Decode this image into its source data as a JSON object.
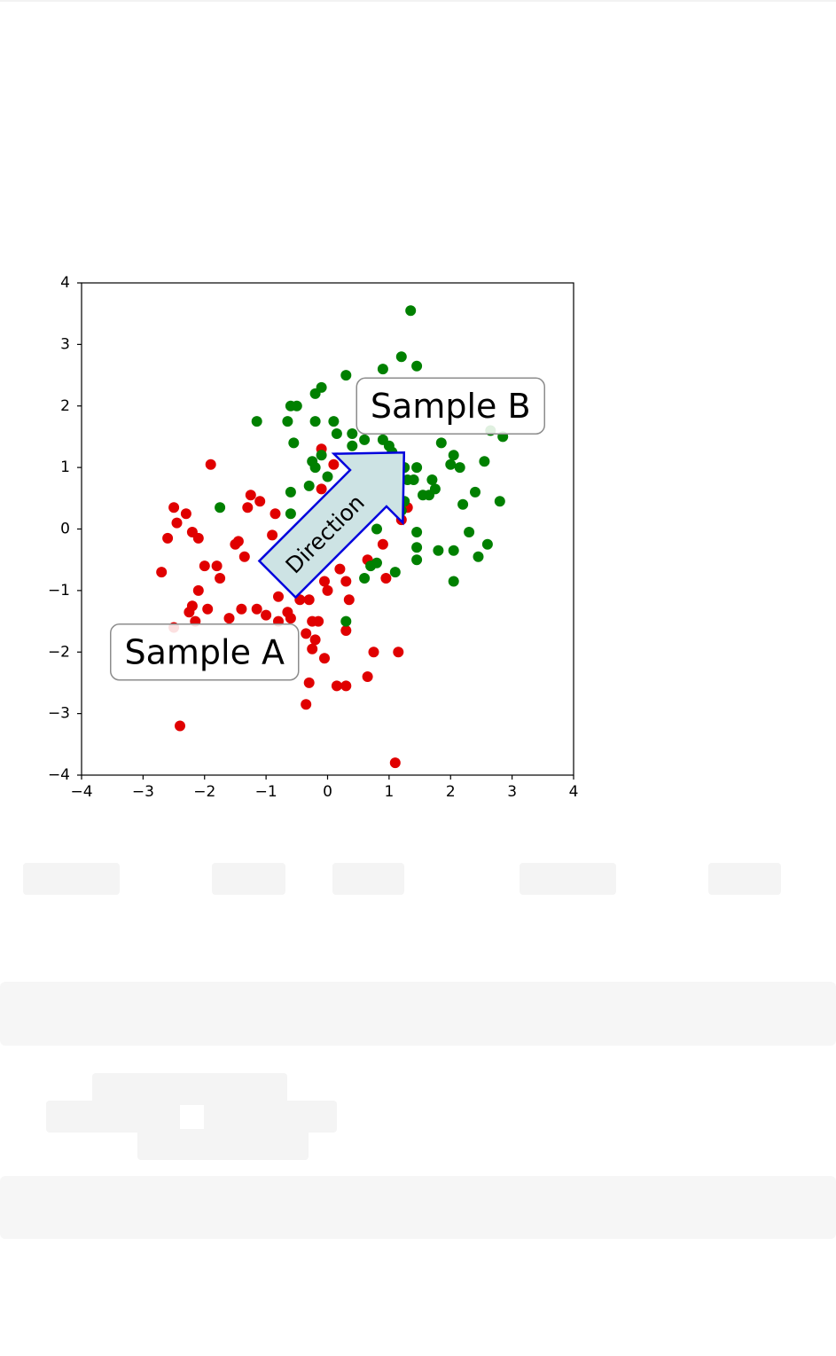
{
  "chart_data": {
    "type": "scatter",
    "xlim": [
      -4,
      4
    ],
    "ylim": [
      -4,
      4
    ],
    "xticks": [
      -4,
      -3,
      -2,
      -1,
      0,
      1,
      2,
      3,
      4
    ],
    "yticks": [
      -4,
      -3,
      -2,
      -1,
      0,
      1,
      2,
      3,
      4
    ],
    "xtick_labels": [
      "−4",
      "−3",
      "−2",
      "−1",
      "0",
      "1",
      "2",
      "3",
      "4"
    ],
    "ytick_labels": [
      "−4",
      "−3",
      "−2",
      "−1",
      "0",
      "1",
      "2",
      "3",
      "4"
    ],
    "grid": false,
    "series": [
      {
        "color": "#e00000",
        "points": [
          [
            -2.5,
            0.35
          ],
          [
            -2.3,
            0.25
          ],
          [
            -2.45,
            0.1
          ],
          [
            -2.6,
            -0.15
          ],
          [
            -2.7,
            -0.7
          ],
          [
            -2.2,
            -0.05
          ],
          [
            -2.1,
            -0.15
          ],
          [
            -1.9,
            1.05
          ],
          [
            -2.0,
            -0.6
          ],
          [
            -1.8,
            -0.6
          ],
          [
            -1.75,
            -0.8
          ],
          [
            -2.1,
            -1.0
          ],
          [
            -2.2,
            -1.25
          ],
          [
            -2.25,
            -1.35
          ],
          [
            -2.15,
            -1.5
          ],
          [
            -1.95,
            -1.3
          ],
          [
            -1.6,
            -1.45
          ],
          [
            -1.4,
            -1.3
          ],
          [
            -1.5,
            -0.25
          ],
          [
            -1.45,
            -0.2
          ],
          [
            -1.35,
            -0.45
          ],
          [
            -1.25,
            0.55
          ],
          [
            -1.3,
            0.35
          ],
          [
            -1.1,
            0.45
          ],
          [
            -0.85,
            0.25
          ],
          [
            -0.9,
            -0.1
          ],
          [
            -0.8,
            -1.1
          ],
          [
            -1.15,
            -1.3
          ],
          [
            -1.0,
            -1.4
          ],
          [
            -0.8,
            -1.5
          ],
          [
            -0.6,
            -1.45
          ],
          [
            -0.65,
            -1.35
          ],
          [
            -0.45,
            -1.15
          ],
          [
            -0.3,
            -1.15
          ],
          [
            -0.25,
            -1.5
          ],
          [
            -0.15,
            -1.5
          ],
          [
            -0.35,
            -1.7
          ],
          [
            -0.2,
            -1.8
          ],
          [
            -0.25,
            -1.95
          ],
          [
            -0.05,
            -2.1
          ],
          [
            -0.3,
            -2.5
          ],
          [
            -0.35,
            -2.85
          ],
          [
            0.15,
            -2.55
          ],
          [
            0.3,
            -2.55
          ],
          [
            0.65,
            -2.4
          ],
          [
            0.75,
            -2.0
          ],
          [
            1.15,
            -2.0
          ],
          [
            1.1,
            -3.8
          ],
          [
            0.3,
            -1.65
          ],
          [
            0.35,
            -1.15
          ],
          [
            0.3,
            -0.85
          ],
          [
            0.2,
            -0.65
          ],
          [
            -0.05,
            -0.85
          ],
          [
            -0.0,
            -1.0
          ],
          [
            0.65,
            -0.5
          ],
          [
            0.9,
            -0.25
          ],
          [
            0.95,
            -0.8
          ],
          [
            1.2,
            0.15
          ],
          [
            1.3,
            0.35
          ],
          [
            -0.1,
            0.65
          ],
          [
            0.1,
            1.05
          ],
          [
            -0.1,
            1.3
          ],
          [
            -2.4,
            -3.2
          ],
          [
            -2.5,
            -1.6
          ]
        ]
      },
      {
        "color": "#008000",
        "points": [
          [
            -1.15,
            1.75
          ],
          [
            -0.65,
            1.75
          ],
          [
            -0.6,
            2.0
          ],
          [
            -0.5,
            2.0
          ],
          [
            -0.2,
            2.2
          ],
          [
            -0.1,
            2.3
          ],
          [
            0.3,
            2.5
          ],
          [
            0.9,
            2.6
          ],
          [
            1.2,
            2.8
          ],
          [
            1.45,
            2.65
          ],
          [
            1.35,
            3.55
          ],
          [
            -0.2,
            1.75
          ],
          [
            0.1,
            1.75
          ],
          [
            0.15,
            1.55
          ],
          [
            0.4,
            1.55
          ],
          [
            0.4,
            1.35
          ],
          [
            0.6,
            1.45
          ],
          [
            -0.55,
            1.4
          ],
          [
            -0.25,
            1.1
          ],
          [
            -0.2,
            1.0
          ],
          [
            -0.1,
            1.2
          ],
          [
            0.0,
            0.85
          ],
          [
            -0.3,
            0.7
          ],
          [
            -0.6,
            0.6
          ],
          [
            -0.6,
            0.25
          ],
          [
            -1.75,
            0.35
          ],
          [
            0.9,
            1.45
          ],
          [
            1.0,
            1.35
          ],
          [
            1.05,
            1.25
          ],
          [
            1.25,
            1.0
          ],
          [
            1.3,
            0.8
          ],
          [
            1.45,
            1.0
          ],
          [
            1.4,
            0.8
          ],
          [
            1.7,
            0.8
          ],
          [
            1.75,
            0.65
          ],
          [
            1.85,
            1.4
          ],
          [
            2.0,
            1.05
          ],
          [
            2.05,
            1.2
          ],
          [
            2.15,
            1.0
          ],
          [
            2.2,
            0.4
          ],
          [
            2.4,
            0.6
          ],
          [
            2.55,
            1.1
          ],
          [
            2.65,
            1.6
          ],
          [
            2.85,
            1.5
          ],
          [
            2.8,
            0.45
          ],
          [
            2.6,
            -0.25
          ],
          [
            2.45,
            -0.45
          ],
          [
            2.3,
            -0.05
          ],
          [
            2.05,
            -0.35
          ],
          [
            2.05,
            -0.85
          ],
          [
            1.8,
            -0.35
          ],
          [
            1.45,
            -0.05
          ],
          [
            1.45,
            -0.3
          ],
          [
            1.45,
            -0.5
          ],
          [
            1.25,
            0.45
          ],
          [
            1.2,
            0.3
          ],
          [
            1.55,
            0.55
          ],
          [
            1.65,
            0.55
          ],
          [
            1.1,
            -0.7
          ],
          [
            0.8,
            -0.55
          ],
          [
            0.6,
            -0.8
          ],
          [
            0.7,
            -0.6
          ],
          [
            0.8,
            0.0
          ],
          [
            0.3,
            -1.5
          ]
        ]
      }
    ],
    "annotations": [
      {
        "text": "Sample A",
        "x": -2,
        "y": -2,
        "boxed": true
      },
      {
        "text": "Sample B",
        "x": 2,
        "y": 2,
        "boxed": true
      },
      {
        "text": "Direction",
        "x": 0,
        "y": 0,
        "shape": "arrow",
        "rotation_deg": 45,
        "fill": "#cde3e4",
        "edge": "#0000dd"
      }
    ]
  }
}
